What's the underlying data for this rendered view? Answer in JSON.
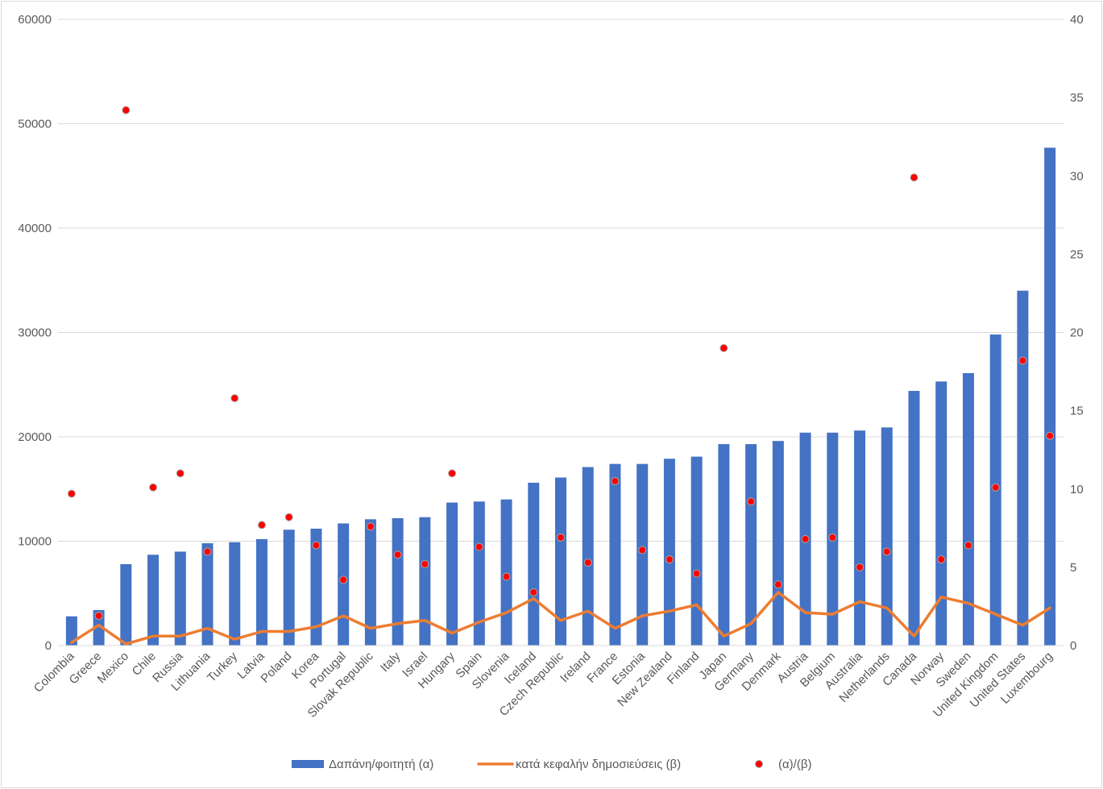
{
  "chart_data": {
    "type": "bar",
    "categories": [
      "Colombia",
      "Greece",
      "Mexico",
      "Chile",
      "Russia",
      "Lithuania",
      "Turkey",
      "Latvia",
      "Poland",
      "Korea",
      "Portugal",
      "Slovak Republic",
      "Italy",
      "Israel",
      "Hungary",
      "Spain",
      "Slovenia",
      "Iceland",
      "Czech Republic",
      "Ireland",
      "France",
      "Estonia",
      "New Zealand",
      "Finland",
      "Japan",
      "Germany",
      "Denmark",
      "Austria",
      "Belgium",
      "Australia",
      "Netherlands",
      "Canada",
      "Norway",
      "Sweden",
      "United Kingdom",
      "United States",
      "Luxembourg"
    ],
    "series": [
      {
        "name": "Δαπάνη/φοιτητή (α)",
        "type": "bar",
        "axis": "left",
        "color": "#4472c4",
        "values": [
          2800,
          3400,
          7800,
          8700,
          9000,
          9800,
          9900,
          10200,
          11100,
          11200,
          11700,
          12100,
          12200,
          12300,
          13700,
          13800,
          14000,
          15600,
          16100,
          17100,
          17400,
          17400,
          17900,
          18100,
          19300,
          19300,
          19600,
          20400,
          20400,
          20600,
          20900,
          24400,
          25300,
          26100,
          29800,
          34000,
          47700
        ]
      },
      {
        "name": "κατά κεφαλήν δημοσιεύσεις (β)",
        "type": "line",
        "axis": "right",
        "color": "#ed7d31",
        "values": [
          0.2,
          1.3,
          0.1,
          0.6,
          0.6,
          1.1,
          0.4,
          0.9,
          0.9,
          1.2,
          1.9,
          1.1,
          1.4,
          1.6,
          0.8,
          1.5,
          2.1,
          3.0,
          1.6,
          2.2,
          1.1,
          1.9,
          2.2,
          2.6,
          0.6,
          1.4,
          3.4,
          2.1,
          2.0,
          2.8,
          2.4,
          0.6,
          3.1,
          2.7,
          2.0,
          1.3,
          2.4
        ]
      },
      {
        "name": "(α)/(β)",
        "type": "scatter",
        "axis": "right",
        "color": "#ff0000",
        "values": [
          9.7,
          1.9,
          34.2,
          10.1,
          11.0,
          6.0,
          15.8,
          7.7,
          8.2,
          6.4,
          4.2,
          7.6,
          5.8,
          5.2,
          11.0,
          6.3,
          4.4,
          3.4,
          6.9,
          5.3,
          10.5,
          6.1,
          5.5,
          4.6,
          19.0,
          9.2,
          3.9,
          6.8,
          6.9,
          5.0,
          6.0,
          29.9,
          5.5,
          6.4,
          10.1,
          18.2,
          13.4
        ]
      }
    ],
    "y_left": {
      "min": 0,
      "max": 60000,
      "ticks": [
        "0",
        "10000",
        "20000",
        "30000",
        "40000",
        "50000",
        "60000"
      ]
    },
    "y_right": {
      "min": 0,
      "max": 40,
      "ticks": [
        "0",
        "5",
        "10",
        "15",
        "20",
        "25",
        "30",
        "35",
        "40"
      ]
    },
    "grid": true,
    "legend_position": "bottom"
  }
}
